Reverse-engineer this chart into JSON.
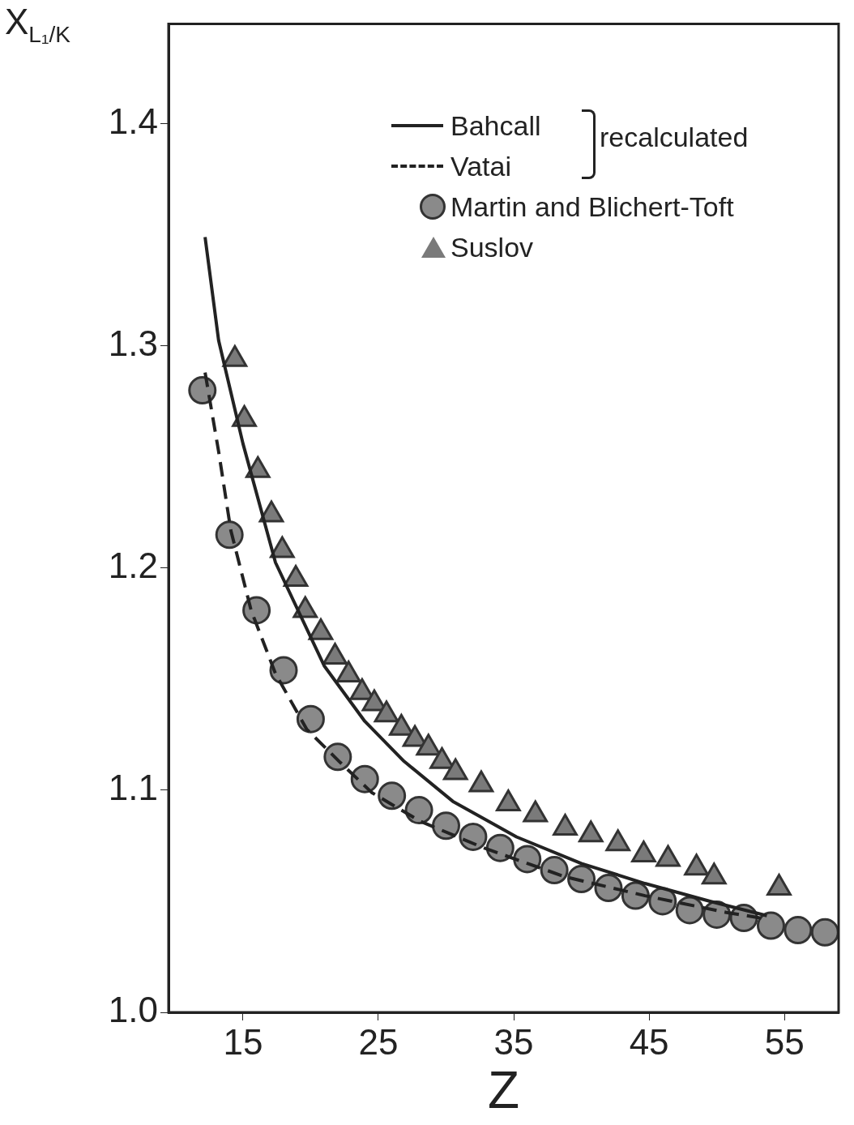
{
  "chart_data": {
    "type": "scatter",
    "xlabel": "Z",
    "ylabel": "X$_{L₁/K}$",
    "xlim": [
      9.5,
      59
    ],
    "ylim": [
      1.0,
      1.445
    ],
    "xticks": [
      15,
      25,
      35,
      45,
      55
    ],
    "yticks": [
      {
        "value": 1.0,
        "label": "1.0"
      },
      1.1,
      1.2,
      1.3,
      1.4
    ],
    "grid": false,
    "legend": "top right",
    "annotations": [
      "recalculated"
    ],
    "series": [
      {
        "name": "Bahcall",
        "type": "line",
        "marker": "none",
        "line_style": "solid",
        "color": "#222222",
        "x": [
          12.2,
          13.2,
          15,
          17.4,
          21,
          24,
          26.9,
          30.5,
          35.2,
          40,
          44.7,
          49.5,
          53.7
        ],
        "values": [
          1.349,
          1.3025,
          1.256,
          1.2025,
          1.156,
          1.131,
          1.113,
          1.095,
          1.079,
          1.067,
          1.058,
          1.05,
          1.0435
        ]
      },
      {
        "name": "Vatai",
        "type": "line",
        "marker": "none",
        "line_style": "dashed",
        "color": "#222222",
        "x": [
          12.2,
          13.2,
          14.1,
          15.6,
          17.4,
          19.7,
          22.1,
          24.5,
          28.1,
          32.8,
          38.8,
          44.7,
          50.7,
          53.7
        ],
        "values": [
          1.288,
          1.2525,
          1.217,
          1.181,
          1.1525,
          1.1275,
          1.113,
          1.099,
          1.086,
          1.074,
          1.061,
          1.0525,
          1.045,
          1.042
        ]
      },
      {
        "name": "Martin and Blichert-Toft",
        "marker": "circle",
        "color": "#8a8a8a",
        "x": [
          12,
          14,
          16,
          18,
          20,
          22,
          24,
          26,
          28,
          30,
          32,
          34,
          36,
          38,
          40,
          42,
          44,
          46,
          48,
          50,
          52,
          54,
          56,
          58
        ],
        "values": [
          1.28,
          1.215,
          1.181,
          1.154,
          1.132,
          1.115,
          1.105,
          1.0975,
          1.091,
          1.084,
          1.079,
          1.074,
          1.069,
          1.064,
          1.06,
          1.056,
          1.0525,
          1.05,
          1.046,
          1.044,
          1.0425,
          1.039,
          1.037,
          1.036
        ]
      },
      {
        "name": "Suslov",
        "marker": "triangle",
        "color": "#7a7a7a",
        "x": [
          14.4,
          15.1,
          16.1,
          17.1,
          17.9,
          18.9,
          19.6,
          20.75,
          21.8,
          22.8,
          23.8,
          24.7,
          25.6,
          26.7,
          27.7,
          28.7,
          29.7,
          30.7,
          32.6,
          34.6,
          36.6,
          38.8,
          40.7,
          42.7,
          44.6,
          46.4,
          48.5,
          49.8,
          54.6
        ],
        "values": [
          1.294,
          1.267,
          1.244,
          1.224,
          1.208,
          1.195,
          1.181,
          1.171,
          1.16,
          1.152,
          1.144,
          1.139,
          1.134,
          1.128,
          1.123,
          1.119,
          1.113,
          1.108,
          1.1025,
          1.094,
          1.089,
          1.083,
          1.08,
          1.076,
          1.071,
          1.069,
          1.065,
          1.061,
          1.056
        ]
      }
    ]
  }
}
